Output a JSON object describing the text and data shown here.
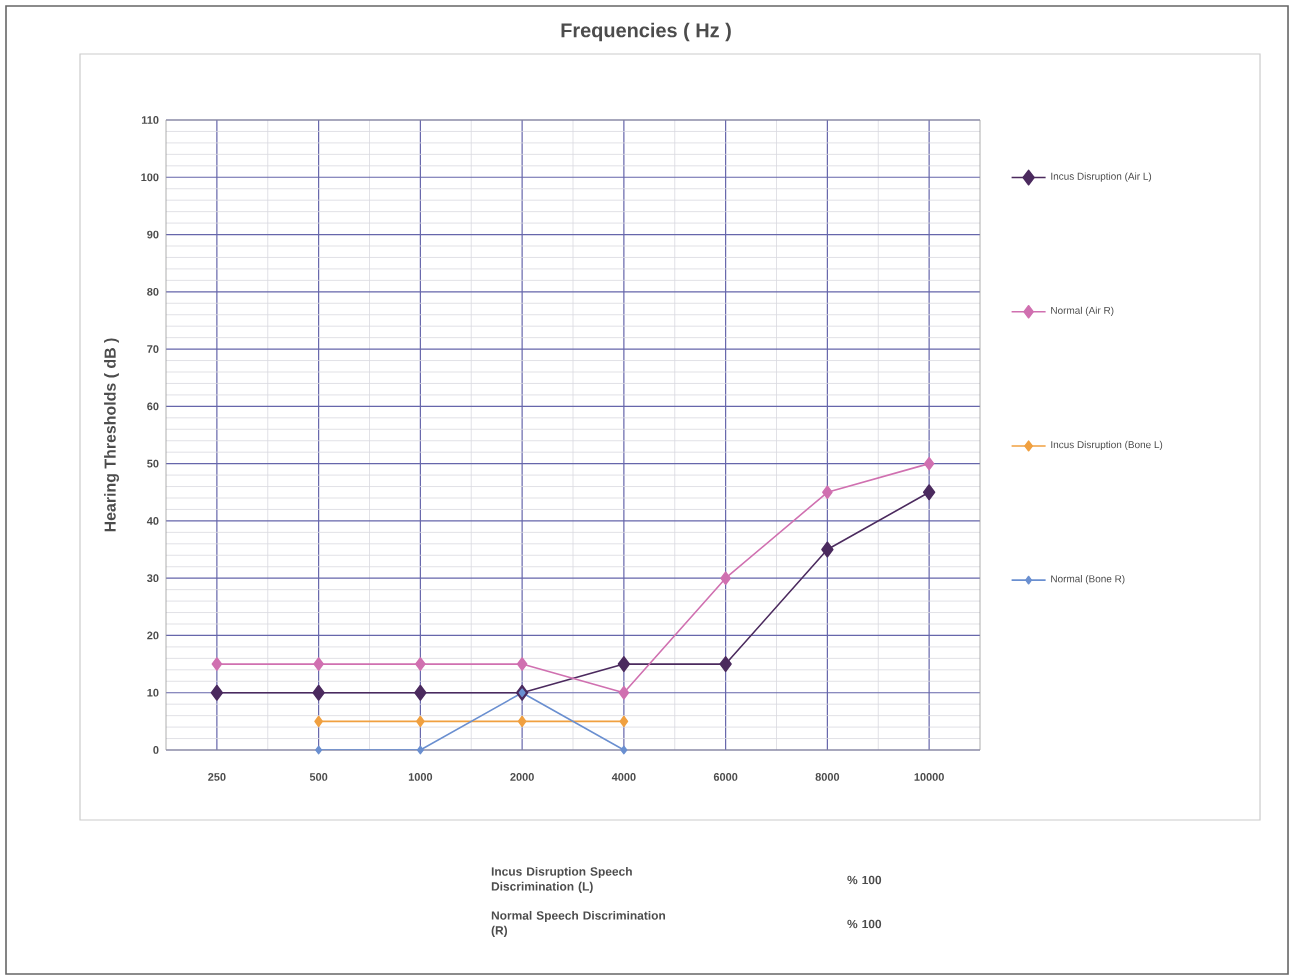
{
  "chart_data": {
    "type": "line",
    "title": "Frequencies ( Hz )",
    "ylabel": "Hearing Thresholds ( dB )",
    "categories": [
      "250",
      "500",
      "1000",
      "2000",
      "4000",
      "6000",
      "8000",
      "10000"
    ],
    "series": [
      {
        "name": "Incus Disruption (Air L)",
        "color": "#4b2a5e",
        "values": [
          10,
          10,
          10,
          10,
          15,
          15,
          35,
          45
        ]
      },
      {
        "name": "Normal (Air R)",
        "color": "#d070b0",
        "values": [
          15,
          15,
          15,
          15,
          10,
          30,
          45,
          50
        ]
      },
      {
        "name": "Incus Disruption (Bone L)",
        "color": "#f0a040",
        "values": [
          null,
          5,
          5,
          5,
          5,
          null,
          null,
          null
        ]
      },
      {
        "name": "Normal (Bone R)",
        "color": "#6a8fd0",
        "values": [
          null,
          0,
          0,
          10,
          0,
          null,
          null,
          null
        ]
      }
    ],
    "ylim": [
      0,
      110
    ],
    "yticks": [
      0,
      10,
      20,
      30,
      40,
      50,
      60,
      70,
      80,
      90,
      100,
      110
    ],
    "grid": true,
    "legend": "right",
    "marker": "diamond",
    "line_style": "solid",
    "annotations": [
      "Incus Disruption Speech Discrimination (L)",
      "% 100",
      "Normal Speech Discrimination (R)",
      "% 100"
    ]
  }
}
